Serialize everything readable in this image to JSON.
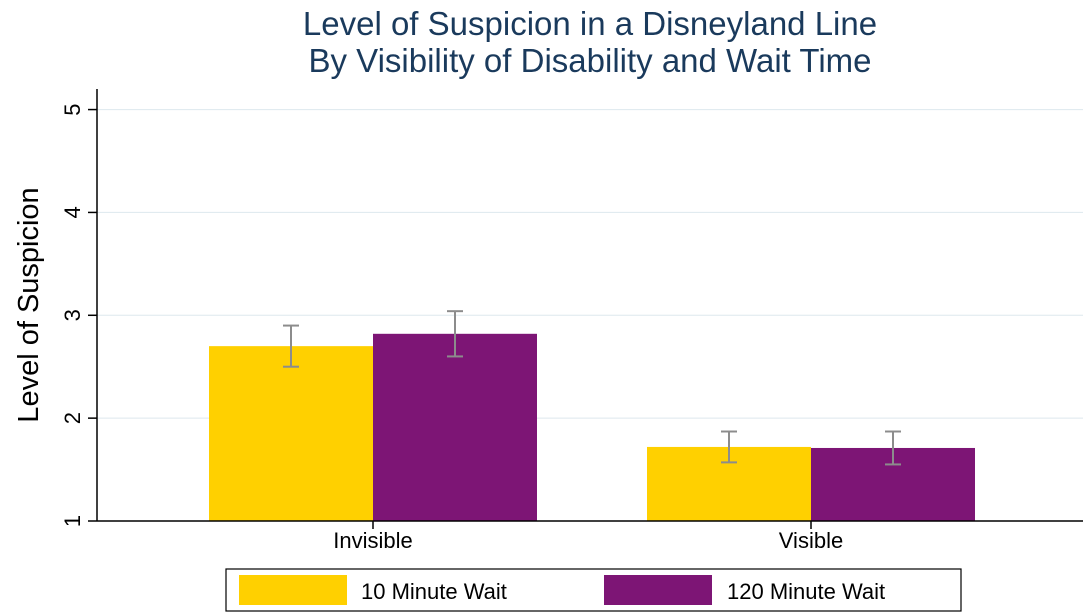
{
  "chart_data": {
    "type": "bar",
    "title": [
      "Level of Suspicion in a Disneyland Line",
      "By Visibility of Disability and Wait Time"
    ],
    "xlabel": "",
    "ylabel": "Level of Suspicion",
    "ylim": [
      1,
      5.2
    ],
    "yticks": [
      1,
      2,
      3,
      4,
      5
    ],
    "grid": true,
    "legend_position": "bottom",
    "categories": [
      "Invisible",
      "Visible"
    ],
    "series": [
      {
        "name": "10 Minute Wait",
        "color": "#ffd000",
        "values": [
          2.7,
          1.72
        ],
        "ci_low": [
          2.5,
          1.57
        ],
        "ci_high": [
          2.9,
          1.87
        ]
      },
      {
        "name": "120 Minute Wait",
        "color": "#7d1575",
        "values": [
          2.82,
          1.71
        ],
        "ci_low": [
          2.6,
          1.55
        ],
        "ci_high": [
          3.04,
          1.87
        ]
      }
    ]
  }
}
